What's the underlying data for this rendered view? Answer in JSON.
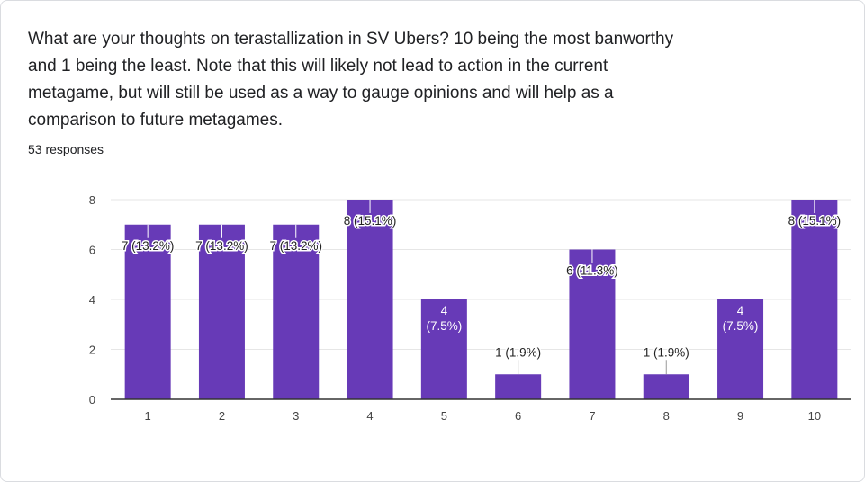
{
  "question": {
    "lines": [
      "What are your thoughts on terastallization in SV Ubers? 10 being the most banworthy",
      "and 1 being the least. Note that this will likely not lead to action in the current",
      "metagame, but will still be used as a way to gauge opinions and will help as a",
      "comparison to future metagames."
    ]
  },
  "responses_text": "53 responses",
  "colors": {
    "bar": "#673ab7",
    "grid": "#e6e6e6",
    "axis": "#333333"
  },
  "chart_data": {
    "type": "bar",
    "categories": [
      "1",
      "2",
      "3",
      "4",
      "5",
      "6",
      "7",
      "8",
      "9",
      "10"
    ],
    "values": [
      7,
      7,
      7,
      8,
      4,
      1,
      6,
      1,
      4,
      8
    ],
    "data_labels": [
      "7 (13.2%)",
      "7 (13.2%)",
      "7 (13.2%)",
      "8 (15.1%)",
      "4\n(7.5%)",
      "1 (1.9%)",
      "6 (11.3%)",
      "1 (1.9%)",
      "4\n(7.5%)",
      "8 (15.1%)"
    ],
    "yticks": [
      0,
      2,
      4,
      6,
      8
    ],
    "ylim": [
      0,
      8
    ],
    "grid": true,
    "xlabel": "",
    "ylabel": ""
  }
}
